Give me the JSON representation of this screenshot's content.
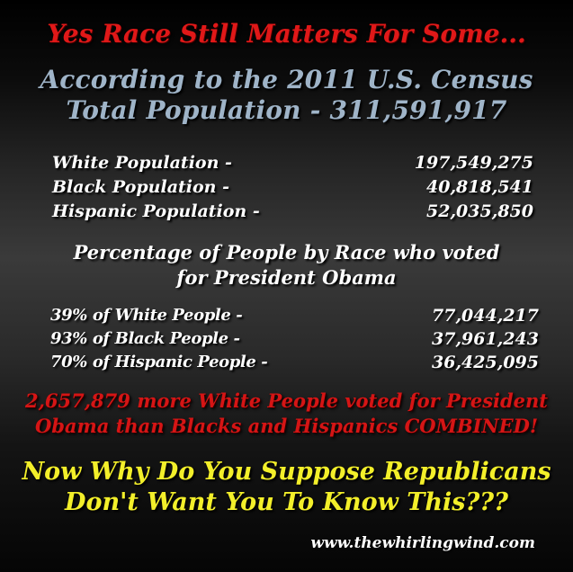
{
  "headline": "Yes Race Still Matters For Some...",
  "census": {
    "line1": "According to the 2011 U.S. Census",
    "line2": "Total Population -  311,591,917"
  },
  "population": [
    {
      "label": "White Population -",
      "value": "197,549,275"
    },
    {
      "label": "Black Population -",
      "value": "40,818,541"
    },
    {
      "label": "Hispanic Population -",
      "value": "52,035,850"
    }
  ],
  "voting_heading": {
    "line1": "Percentage of People by Race who voted",
    "line2": "for President Obama"
  },
  "voters": [
    {
      "label": "39% of White People -",
      "value": "77,044,217"
    },
    {
      "label": "93% of Black People -",
      "value": "37,961,243"
    },
    {
      "label": "70% of Hispanic People -",
      "value": "36,425,095"
    }
  ],
  "highlight": {
    "line1": "2,657,879 more White People voted for President",
    "line2": "Obama than Blacks and Hispanics COMBINED!"
  },
  "question": {
    "line1": "Now Why Do You Suppose Republicans",
    "line2": "Don't Want You To Know This???"
  },
  "website": "www.thewhirlingwind.com",
  "colors": {
    "headline": "#e01818",
    "census": "#9fb4c8",
    "body_text": "#ffffff",
    "highlight": "#d51515",
    "question": "#f3ef2a"
  }
}
